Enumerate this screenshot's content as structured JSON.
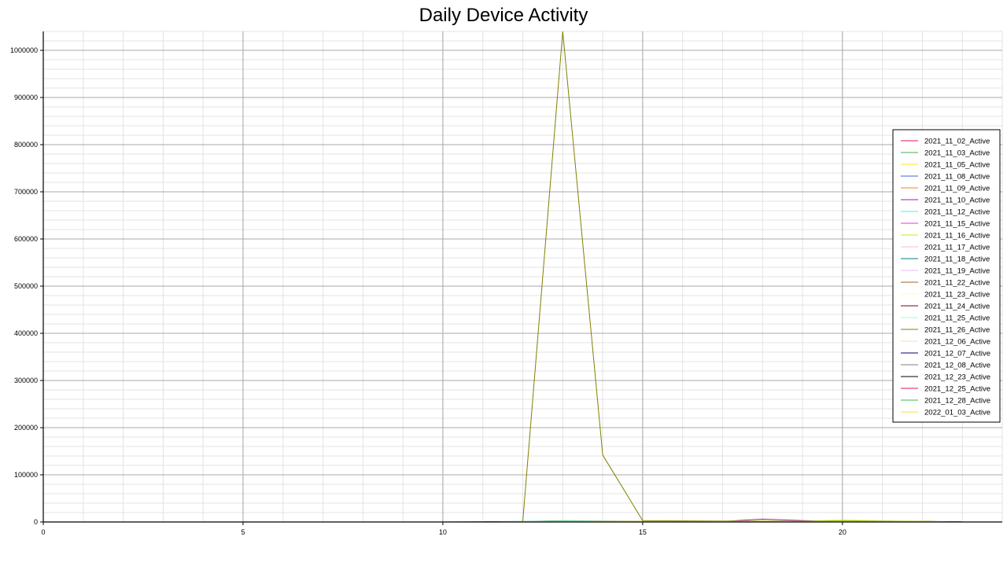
{
  "chart_data": {
    "type": "line",
    "title": "Daily Device Activity",
    "xlabel": "",
    "ylabel": "",
    "xlim": [
      0,
      24
    ],
    "ylim": [
      0,
      1040000
    ],
    "x_ticks": [
      0,
      5,
      10,
      15,
      20
    ],
    "y_ticks": [
      0,
      100000,
      200000,
      300000,
      400000,
      500000,
      600000,
      700000,
      800000,
      900000,
      1000000
    ],
    "grid": true,
    "legend_position": "right",
    "x": [
      0,
      1,
      2,
      3,
      4,
      5,
      6,
      7,
      8,
      9,
      10,
      11,
      12,
      13,
      14,
      15,
      16,
      17,
      18,
      19,
      20,
      21,
      22,
      23
    ],
    "series": [
      {
        "name": "2021_11_02_Active",
        "color": "#e6194b",
        "values": [
          0,
          0,
          0,
          0,
          0,
          0,
          0,
          0,
          0,
          0,
          0,
          0,
          800,
          1500,
          1000,
          800,
          900,
          1200,
          1500,
          1000,
          1400,
          900,
          800,
          0
        ]
      },
      {
        "name": "2021_11_03_Active",
        "color": "#3cb44b",
        "values": [
          0,
          0,
          0,
          0,
          0,
          0,
          0,
          0,
          0,
          0,
          0,
          0,
          700,
          1200,
          900,
          800,
          1000,
          900,
          1200,
          1100,
          900,
          1000,
          800,
          0
        ]
      },
      {
        "name": "2021_11_05_Active",
        "color": "#ffe119",
        "values": [
          0,
          0,
          0,
          0,
          0,
          0,
          0,
          0,
          0,
          0,
          0,
          0,
          1000,
          1800,
          1500,
          1300,
          1400,
          1500,
          1800,
          1600,
          1500,
          1400,
          1200,
          0
        ]
      },
      {
        "name": "2021_11_08_Active",
        "color": "#4363d8",
        "values": [
          0,
          0,
          0,
          0,
          0,
          0,
          0,
          0,
          0,
          0,
          0,
          0,
          500,
          1000,
          900,
          700,
          800,
          900,
          1000,
          900,
          800,
          700,
          600,
          0
        ]
      },
      {
        "name": "2021_11_09_Active",
        "color": "#f58231",
        "values": [
          0,
          0,
          0,
          0,
          0,
          0,
          0,
          0,
          0,
          0,
          0,
          0,
          600,
          1100,
          900,
          800,
          900,
          1000,
          1200,
          1000,
          900,
          800,
          700,
          0
        ]
      },
      {
        "name": "2021_11_10_Active",
        "color": "#911eb4",
        "values": [
          0,
          0,
          0,
          0,
          0,
          0,
          0,
          0,
          0,
          0,
          0,
          0,
          700,
          1300,
          1100,
          900,
          1000,
          1200,
          6000,
          3000,
          1500,
          1200,
          1000,
          0
        ]
      },
      {
        "name": "2021_11_12_Active",
        "color": "#46f0f0",
        "values": [
          0,
          0,
          0,
          0,
          0,
          0,
          0,
          0,
          0,
          0,
          0,
          500,
          1500,
          3000,
          2000,
          1500,
          1200,
          1300,
          1500,
          1200,
          1100,
          1000,
          900,
          0
        ]
      },
      {
        "name": "2021_11_15_Active",
        "color": "#f032e6",
        "values": [
          0,
          0,
          0,
          0,
          0,
          0,
          0,
          0,
          0,
          0,
          0,
          0,
          800,
          1400,
          1200,
          1000,
          1100,
          1200,
          1300,
          1200,
          1100,
          1000,
          900,
          0
        ]
      },
      {
        "name": "2021_11_16_Active",
        "color": "#bcf60c",
        "values": [
          0,
          0,
          0,
          0,
          0,
          0,
          0,
          0,
          0,
          0,
          0,
          0,
          900,
          1600,
          1400,
          1200,
          1300,
          1400,
          1600,
          1500,
          4000,
          2000,
          1500,
          0
        ]
      },
      {
        "name": "2021_11_17_Active",
        "color": "#fabebe",
        "values": [
          0,
          0,
          0,
          0,
          0,
          0,
          0,
          0,
          0,
          0,
          0,
          0,
          700,
          1300,
          1100,
          1000,
          1100,
          1200,
          1400,
          1300,
          1200,
          1100,
          1000,
          0
        ]
      },
      {
        "name": "2021_11_18_Active",
        "color": "#008080",
        "values": [
          0,
          0,
          0,
          0,
          0,
          0,
          0,
          0,
          0,
          0,
          0,
          0,
          600,
          1200,
          1000,
          900,
          1000,
          1100,
          1300,
          1200,
          1100,
          1000,
          900,
          0
        ]
      },
      {
        "name": "2021_11_19_Active",
        "color": "#e6beff",
        "values": [
          0,
          0,
          0,
          0,
          0,
          0,
          0,
          0,
          0,
          0,
          0,
          0,
          800,
          1500,
          1300,
          1100,
          1200,
          1300,
          1500,
          1400,
          1300,
          1200,
          1100,
          0
        ]
      },
      {
        "name": "2021_11_22_Active",
        "color": "#9a6324",
        "values": [
          0,
          0,
          0,
          0,
          0,
          0,
          0,
          0,
          0,
          0,
          0,
          0,
          700,
          1400,
          1200,
          1000,
          1100,
          1200,
          1400,
          1300,
          1200,
          1100,
          1000,
          0
        ]
      },
      {
        "name": "2021_11_23_Active",
        "color": "#fffac8",
        "values": [
          0,
          0,
          0,
          0,
          0,
          0,
          0,
          0,
          0,
          0,
          0,
          0,
          600,
          1300,
          1100,
          1000,
          1100,
          1200,
          1300,
          1200,
          1100,
          1000,
          900,
          0
        ]
      },
      {
        "name": "2021_11_24_Active",
        "color": "#800000",
        "values": [
          0,
          0,
          0,
          0,
          0,
          0,
          0,
          0,
          0,
          0,
          0,
          0,
          500,
          1200,
          1000,
          900,
          1000,
          1100,
          1200,
          1100,
          1000,
          900,
          800,
          0
        ]
      },
      {
        "name": "2021_11_25_Active",
        "color": "#aaffc3",
        "values": [
          0,
          0,
          0,
          0,
          0,
          0,
          0,
          0,
          0,
          0,
          0,
          0,
          600,
          1300,
          1100,
          1000,
          1100,
          1200,
          1300,
          1200,
          1100,
          1000,
          900,
          0
        ]
      },
      {
        "name": "2021_11_26_Active",
        "color": "#808000",
        "values": [
          0,
          0,
          0,
          0,
          0,
          0,
          0,
          0,
          0,
          0,
          0,
          500,
          1000,
          1040000,
          142000,
          3000,
          2500,
          2200,
          2000,
          1800,
          2000,
          1900,
          1700,
          0
        ]
      },
      {
        "name": "2021_12_06_Active",
        "color": "#ffd8b1",
        "values": [
          0,
          0,
          0,
          0,
          0,
          0,
          0,
          0,
          0,
          0,
          0,
          0,
          700,
          1400,
          1200,
          1100,
          1200,
          1300,
          1400,
          1300,
          1200,
          1100,
          1000,
          0
        ]
      },
      {
        "name": "2021_12_07_Active",
        "color": "#000075",
        "values": [
          0,
          0,
          0,
          0,
          0,
          0,
          0,
          0,
          0,
          0,
          0,
          0,
          600,
          1200,
          1100,
          1000,
          1100,
          1200,
          1300,
          1200,
          1100,
          1000,
          900,
          0
        ]
      },
      {
        "name": "2021_12_08_Active",
        "color": "#808080",
        "values": [
          0,
          0,
          0,
          0,
          0,
          0,
          0,
          0,
          0,
          0,
          0,
          0,
          700,
          1300,
          1200,
          1100,
          1200,
          1300,
          1400,
          1300,
          1200,
          1100,
          1000,
          0
        ]
      },
      {
        "name": "2021_12_23_Active",
        "color": "#000000",
        "values": [
          0,
          0,
          0,
          0,
          0,
          0,
          0,
          0,
          0,
          0,
          0,
          0,
          500,
          1100,
          1000,
          900,
          1000,
          1100,
          1200,
          1100,
          1000,
          900,
          800,
          0
        ]
      },
      {
        "name": "2021_12_25_Active",
        "color": "#e6194b",
        "values": [
          0,
          0,
          0,
          0,
          0,
          0,
          0,
          0,
          0,
          0,
          0,
          0,
          600,
          1200,
          1100,
          1000,
          1100,
          1200,
          1300,
          1200,
          1100,
          1000,
          900,
          0
        ]
      },
      {
        "name": "2021_12_28_Active",
        "color": "#3cb44b",
        "values": [
          0,
          0,
          0,
          0,
          0,
          0,
          0,
          0,
          0,
          0,
          0,
          0,
          700,
          1300,
          1200,
          1100,
          1200,
          1300,
          1400,
          1300,
          1200,
          1100,
          1000,
          0
        ]
      },
      {
        "name": "2022_01_03_Active",
        "color": "#ffe119",
        "values": [
          0,
          0,
          0,
          0,
          0,
          0,
          0,
          0,
          0,
          0,
          0,
          0,
          800,
          1400,
          1300,
          1200,
          1300,
          1400,
          1500,
          1400,
          1300,
          1200,
          1100,
          0
        ]
      }
    ]
  }
}
